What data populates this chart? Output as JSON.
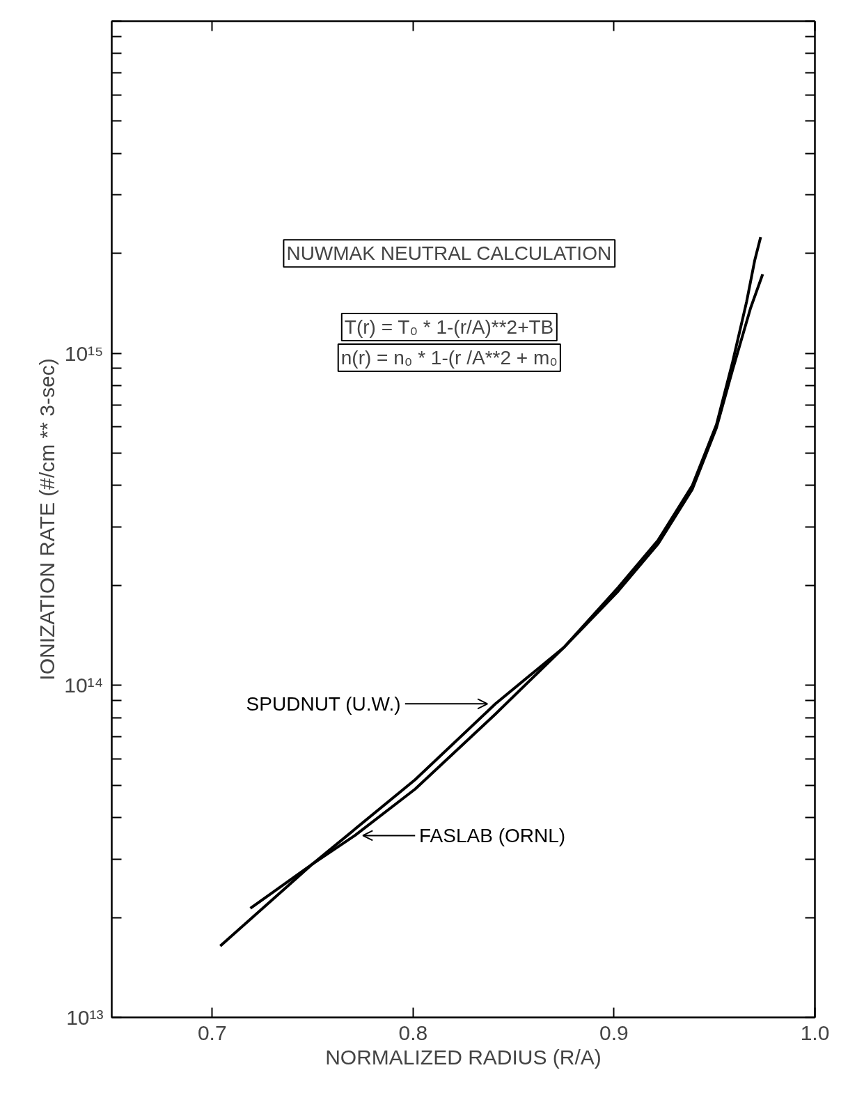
{
  "chart_data": {
    "type": "line",
    "xlabel": "NORMALIZED RADIUS (R/A)",
    "ylabel": "IONIZATION RATE (#/cm ** 3-sec)",
    "annotations": [
      "NUWMAK NEUTRAL CALCULATION",
      "T(r) = T₀ * 1-(r/A)**2+TB",
      "n(r) = n₀ * 1-(r /A**2 + m₀"
    ],
    "log": "y",
    "grid": false,
    "line_style": "solid",
    "xlim": [
      0.65,
      1.0
    ],
    "xticks": [
      0.7,
      0.8,
      0.9,
      {
        "value": 1.0,
        "label": "1.0"
      }
    ],
    "ylim": [
      10000000000000.0,
      1e+16
    ],
    "yticks": [
      {
        "value": 10000000000000.0,
        "label": "10¹³"
      },
      {
        "value": 20000000000000.0,
        "label": null
      },
      {
        "value": 30000000000000.0,
        "label": null
      },
      {
        "value": 40000000000000.0,
        "label": null
      },
      {
        "value": 50000000000000.0,
        "label": null
      },
      {
        "value": 60000000000000.0,
        "label": null
      },
      {
        "value": 70000000000000.0,
        "label": null
      },
      {
        "value": 80000000000000.0,
        "label": null
      },
      {
        "value": 90000000000000.0,
        "label": null
      },
      {
        "value": 100000000000000.0,
        "label": "10¹⁴"
      },
      {
        "value": 200000000000000.0,
        "label": null
      },
      {
        "value": 300000000000000.0,
        "label": null
      },
      {
        "value": 400000000000000.0,
        "label": null
      },
      {
        "value": 500000000000000.0,
        "label": null
      },
      {
        "value": 600000000000000.0,
        "label": null
      },
      {
        "value": 700000000000000.0,
        "label": null
      },
      {
        "value": 800000000000000.0,
        "label": null
      },
      {
        "value": 900000000000000.0,
        "label": null
      },
      {
        "value": 1000000000000000.0,
        "label": "10¹⁵"
      },
      {
        "value": 2000000000000000.0,
        "label": null
      },
      {
        "value": 3000000000000000.0,
        "label": null
      },
      {
        "value": 4000000000000000.0,
        "label": null
      },
      {
        "value": 5000000000000000.0,
        "label": null
      },
      {
        "value": 6000000000000000.0,
        "label": null
      },
      {
        "value": 7000000000000000.0,
        "label": null
      },
      {
        "value": 8000000000000000.0,
        "label": null
      },
      {
        "value": 9000000000000000.0,
        "label": null
      },
      {
        "value": 1e+16,
        "label": null
      }
    ],
    "series": [
      {
        "name": "SPUDNUT (U.W.)",
        "color": "#000000",
        "x": [
          0.704,
          0.75,
          0.801,
          0.841,
          0.875,
          0.902,
          0.922,
          0.939,
          0.951,
          0.959,
          0.966,
          0.97,
          0.973
        ],
        "values": [
          16400000000000.0,
          29000000000000.0,
          52000000000000.0,
          88000000000000.0,
          130000000000000.0,
          197000000000000.0,
          274000000000000.0,
          400000000000000.0,
          610000000000000.0,
          940000000000000.0,
          1430000000000000.0,
          1900000000000000.0,
          2240000000000000.0
        ]
      },
      {
        "name": "FASLAB (ORNL)",
        "color": "#000000",
        "x": [
          0.719,
          0.75,
          0.771,
          0.801,
          0.841,
          0.875,
          0.902,
          0.922,
          0.939,
          0.951,
          0.959,
          0.968,
          0.974
        ],
        "values": [
          21300000000000.0,
          29000000000000.0,
          35300000000000.0,
          48700000000000.0,
          82000000000000.0,
          130000000000000.0,
          192000000000000.0,
          267000000000000.0,
          390000000000000.0,
          597000000000000.0,
          890000000000000.0,
          1370000000000000.0,
          1730000000000000.0
        ]
      }
    ]
  }
}
